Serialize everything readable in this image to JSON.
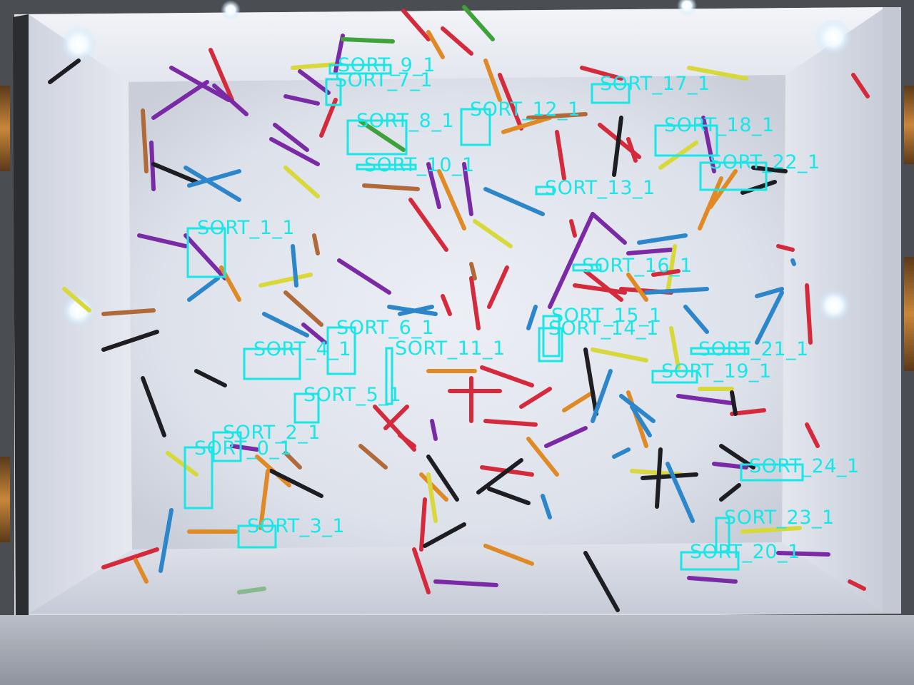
{
  "detections": [
    {
      "label": "SORT_0_1"
    },
    {
      "label": "SORT_1_1"
    },
    {
      "label": "SORT_2_1"
    },
    {
      "label": "SORT_3_1"
    },
    {
      "label": "SORT_4_1"
    },
    {
      "label": "SORT_5_1"
    },
    {
      "label": "SORT_6_1"
    },
    {
      "label": "SORT_7_1"
    },
    {
      "label": "SORT_8_1"
    },
    {
      "label": "SORT_9_1"
    },
    {
      "label": "SORT_10_1"
    },
    {
      "label": "SORT_11_1"
    },
    {
      "label": "SORT_12_1"
    },
    {
      "label": "SORT_13_1"
    },
    {
      "label": "SORT_14_1"
    },
    {
      "label": "SORT_15_1"
    },
    {
      "label": "SORT_16_1"
    },
    {
      "label": "SORT_17_1"
    },
    {
      "label": "SORT_18_1"
    },
    {
      "label": "SORT_19_1"
    },
    {
      "label": "SORT_20_1"
    },
    {
      "label": "SORT_21_1"
    },
    {
      "label": "SORT_22_1"
    },
    {
      "label": "SORT_23_1"
    },
    {
      "label": "SORT_24_1"
    }
  ],
  "colors": {
    "overlay": "#19e6e6",
    "stick_colors": [
      "#7b2aa6",
      "#d42a3c",
      "#e08a25",
      "#1d1d22",
      "#2c86c9",
      "#d9d83a",
      "#3fa13a",
      "#b06a3a",
      "#8a8aa0"
    ]
  }
}
